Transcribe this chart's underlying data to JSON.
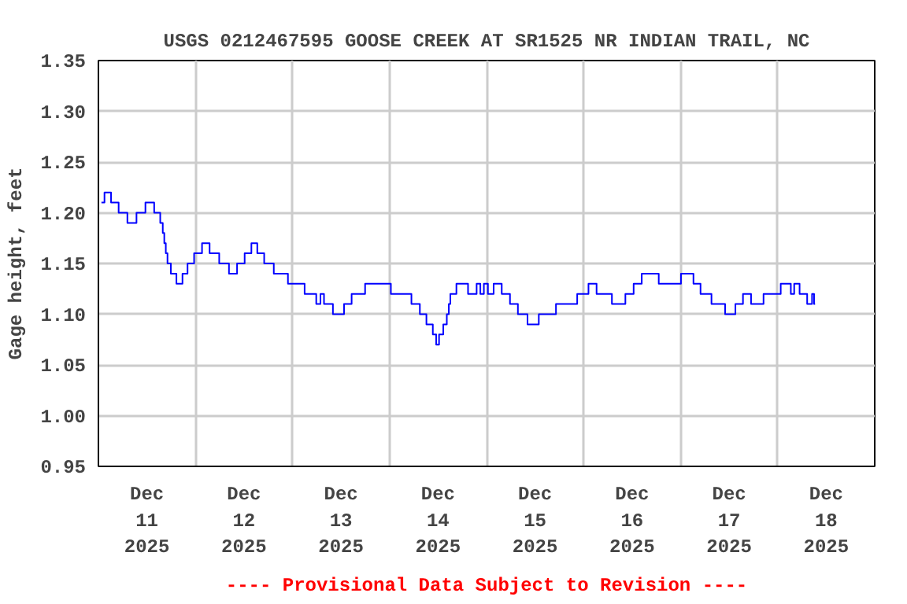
{
  "chart_data": {
    "type": "step",
    "title": "USGS 0212467595 GOOSE CREEK AT SR1525 NR INDIAN TRAIL, NC",
    "ylabel": "Gage height, feet",
    "annotations": [
      "---- Provisional Data Subject to Revision ----"
    ],
    "x": [
      "2025-12-11T00:45",
      "2025-12-11T02:15",
      "2025-12-11T04:00",
      "2025-12-11T06:00",
      "2025-12-11T08:20",
      "2025-12-11T10:30",
      "2025-12-11T12:45",
      "2025-12-11T14:50",
      "2025-12-11T15:45",
      "2025-12-11T16:05",
      "2025-12-11T16:30",
      "2025-12-11T16:50",
      "2025-12-11T17:20",
      "2025-12-11T18:30",
      "2025-12-11T20:05",
      "2025-12-11T21:30",
      "2025-12-11T22:35",
      "2025-12-12T00:45",
      "2025-12-12T02:30",
      "2025-12-12T04:30",
      "2025-12-12T07:15",
      "2025-12-12T09:20",
      "2025-12-12T11:15",
      "2025-12-12T13:05",
      "2025-12-12T14:35",
      "2025-12-12T16:00",
      "2025-12-12T18:00",
      "2025-12-12T20:45",
      "2025-12-13T01:00",
      "2025-12-13T05:00",
      "2025-12-13T06:45",
      "2025-12-13T07:05",
      "2025-12-13T08:30",
      "2025-12-13T11:30",
      "2025-12-13T14:00",
      "2025-12-13T15:15",
      "2025-12-13T20:40",
      "2025-12-14T04:00",
      "2025-12-14T06:50",
      "2025-12-14T08:10",
      "2025-12-14T10:05",
      "2025-12-14T11:20",
      "2025-12-14T11:45",
      "2025-12-14T12:45",
      "2025-12-14T13:50",
      "2025-12-14T14:30",
      "2025-12-14T14:50",
      "2025-12-14T15:15",
      "2025-12-14T17:50",
      "2025-12-14T21:00",
      "2025-12-14T22:05",
      "2025-12-14T22:50",
      "2025-12-14T23:50",
      "2025-12-15T00:50",
      "2025-12-15T02:40",
      "2025-12-15T04:50",
      "2025-12-15T06:45",
      "2025-12-15T08:45",
      "2025-12-15T11:30",
      "2025-12-15T14:20",
      "2025-12-15T20:00",
      "2025-12-16T00:50",
      "2025-12-16T01:35",
      "2025-12-16T04:50",
      "2025-12-16T09:10",
      "2025-12-16T11:30",
      "2025-12-16T13:15",
      "2025-12-16T15:30",
      "2025-12-16T21:40",
      "2025-12-17T02:30",
      "2025-12-17T03:50",
      "2025-12-17T06:00",
      "2025-12-17T09:15",
      "2025-12-17T12:45",
      "2025-12-17T14:20",
      "2025-12-17T16:30",
      "2025-12-17T18:20",
      "2025-12-17T22:40",
      "2025-12-18T02:50",
      "2025-12-18T03:40",
      "2025-12-18T04:30",
      "2025-12-18T06:20",
      "2025-12-18T08:15",
      "2025-12-18T08:45",
      "2025-12-18T09:15"
    ],
    "series": [
      {
        "color": "#0000ff",
        "values": [
          1.21,
          1.22,
          1.21,
          1.2,
          1.19,
          1.2,
          1.21,
          1.2,
          1.19,
          1.18,
          1.17,
          1.16,
          1.15,
          1.14,
          1.13,
          1.14,
          1.15,
          1.16,
          1.17,
          1.16,
          1.15,
          1.14,
          1.15,
          1.16,
          1.17,
          1.16,
          1.15,
          1.14,
          1.13,
          1.12,
          1.11,
          1.12,
          1.11,
          1.1,
          1.11,
          1.12,
          1.13,
          1.12,
          1.11,
          1.1,
          1.09,
          1.08,
          1.07,
          1.08,
          1.09,
          1.1,
          1.11,
          1.12,
          1.13,
          1.12,
          1.13,
          1.12,
          1.13,
          1.12,
          1.13,
          1.12,
          1.11,
          1.1,
          1.09,
          1.1,
          1.11,
          1.12,
          1.13,
          1.12,
          1.11,
          1.12,
          1.13,
          1.14,
          1.13,
          1.14,
          1.13,
          1.12,
          1.11,
          1.1,
          1.11,
          1.12,
          1.11,
          1.12,
          1.13,
          1.12,
          1.13,
          1.12,
          1.11,
          1.12,
          1.11
        ]
      }
    ],
    "xlim": [
      "2025-12-11T00:00",
      "2025-12-19T00:00"
    ],
    "xticks": [
      {
        "value": "2025-12-11T00:00",
        "label": null
      },
      {
        "value": "2025-12-11T12:00",
        "label": "Dec\n11\n2025"
      },
      {
        "value": "2025-12-12T00:00",
        "label": null
      },
      {
        "value": "2025-12-12T12:00",
        "label": "Dec\n12\n2025"
      },
      {
        "value": "2025-12-13T00:00",
        "label": null
      },
      {
        "value": "2025-12-13T12:00",
        "label": "Dec\n13\n2025"
      },
      {
        "value": "2025-12-14T00:00",
        "label": null
      },
      {
        "value": "2025-12-14T12:00",
        "label": "Dec\n14\n2025"
      },
      {
        "value": "2025-12-15T00:00",
        "label": null
      },
      {
        "value": "2025-12-15T12:00",
        "label": "Dec\n15\n2025"
      },
      {
        "value": "2025-12-16T00:00",
        "label": null
      },
      {
        "value": "2025-12-16T12:00",
        "label": "Dec\n16\n2025"
      },
      {
        "value": "2025-12-17T00:00",
        "label": null
      },
      {
        "value": "2025-12-17T12:00",
        "label": "Dec\n17\n2025"
      },
      {
        "value": "2025-12-18T00:00",
        "label": null
      },
      {
        "value": "2025-12-18T12:00",
        "label": "Dec\n18\n2025"
      },
      {
        "value": "2025-12-19T00:00",
        "label": null
      }
    ],
    "ylim": [
      0.95,
      1.35
    ],
    "yticks": [
      {
        "value": 0.95,
        "label": "0.95"
      },
      {
        "value": 1.0,
        "label": "1.00"
      },
      {
        "value": 1.05,
        "label": "1.05"
      },
      {
        "value": 1.1,
        "label": "1.10"
      },
      {
        "value": 1.15,
        "label": "1.15"
      },
      {
        "value": 1.2,
        "label": "1.20"
      },
      {
        "value": 1.25,
        "label": "1.25"
      },
      {
        "value": 1.3,
        "label": "1.30"
      },
      {
        "value": 1.35,
        "label": "1.35"
      }
    ],
    "grid": true
  }
}
